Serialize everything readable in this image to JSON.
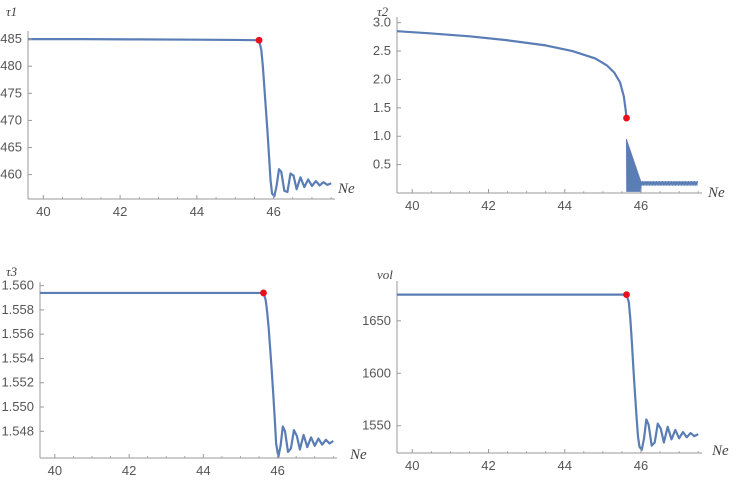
{
  "page": {
    "background": "#ffffff"
  },
  "style": {
    "line_color": "#5a7db5",
    "marker_color": "#e8101a",
    "axis_color": "#9a9a9a"
  },
  "chart_data": [
    {
      "type": "line",
      "ylabel": "τ1",
      "xlabel": "Ne",
      "xlim": [
        39.6,
        47.6
      ],
      "ylim": [
        455.5,
        486.5
      ],
      "x_origin": 39.6,
      "y_origin": 455.5,
      "x_ticks": [
        40,
        42,
        44,
        46
      ],
      "y_ticks": [
        460,
        465,
        470,
        475,
        480,
        485
      ],
      "y_tick_labels": [
        "460",
        "465",
        "470",
        "475",
        "480",
        "485"
      ],
      "x_tick_labels": [
        "40",
        "42",
        "44",
        "46"
      ],
      "series": [
        {
          "x": [
            39.6,
            41.0,
            42.5,
            44.0,
            45.0,
            45.5,
            45.62,
            45.68,
            45.72,
            45.76,
            45.8,
            45.84,
            45.88,
            45.92,
            45.96,
            46.02,
            46.08,
            46.14,
            46.2,
            46.28,
            46.36,
            46.44,
            46.52,
            46.6,
            46.7,
            46.8,
            46.9,
            47.0,
            47.1,
            47.2,
            47.3,
            47.4,
            47.5
          ],
          "y": [
            485.0,
            485.0,
            484.95,
            484.9,
            484.85,
            484.8,
            484.8,
            483.0,
            480.0,
            476.0,
            472.0,
            468.0,
            463.5,
            459.0,
            456.5,
            456.0,
            458.0,
            461.0,
            460.5,
            457.0,
            456.8,
            460.2,
            459.8,
            457.3,
            459.5,
            457.7,
            459.1,
            457.9,
            458.8,
            458.0,
            458.6,
            458.1,
            458.4
          ]
        }
      ],
      "markers": [
        {
          "x": 45.62,
          "y": 484.8
        }
      ]
    },
    {
      "type": "line",
      "ylabel": "τ2",
      "xlabel": "Ne",
      "xlim": [
        39.6,
        47.6
      ],
      "ylim": [
        0,
        3.1
      ],
      "x_origin": 39.6,
      "y_origin": 0,
      "x_ticks": [
        40,
        42,
        44,
        46
      ],
      "y_ticks": [
        0.5,
        1.0,
        1.5,
        2.0,
        2.5,
        3.0
      ],
      "y_tick_labels": [
        "0.5",
        "1.0",
        "1.5",
        "2.0",
        "2.5",
        "3.0"
      ],
      "x_tick_labels": [
        "40",
        "42",
        "44",
        "46"
      ],
      "series": [
        {
          "x": [
            39.6,
            40.5,
            41.5,
            42.5,
            43.5,
            44.2,
            44.8,
            45.1,
            45.3,
            45.45,
            45.55,
            45.6,
            45.62
          ],
          "y": [
            2.85,
            2.81,
            2.76,
            2.69,
            2.6,
            2.5,
            2.37,
            2.25,
            2.12,
            1.95,
            1.7,
            1.45,
            1.32
          ]
        }
      ],
      "noise_band": {
        "x_start": 45.62,
        "x_dense_end": 46.0,
        "x_end": 47.5,
        "y_low": 0.02,
        "y_high_start": 0.95,
        "y_tail": 0.17
      },
      "markers": [
        {
          "x": 45.62,
          "y": 1.32
        }
      ]
    },
    {
      "type": "line",
      "ylabel": "τ3",
      "xlabel": "Ne",
      "xlim": [
        39.6,
        47.6
      ],
      "ylim": [
        1.5458,
        1.5603
      ],
      "x_origin": 39.6,
      "y_origin": 1.5458,
      "x_ticks": [
        40,
        42,
        44,
        46
      ],
      "y_ticks": [
        1.548,
        1.55,
        1.552,
        1.554,
        1.556,
        1.558,
        1.56
      ],
      "y_tick_labels": [
        "1.548",
        "1.550",
        "1.552",
        "1.554",
        "1.556",
        "1.558",
        "1.560"
      ],
      "x_tick_labels": [
        "40",
        "42",
        "44",
        "46"
      ],
      "series": [
        {
          "x": [
            39.6,
            41.0,
            42.5,
            44.0,
            45.0,
            45.5,
            45.62,
            45.68,
            45.72,
            45.76,
            45.8,
            45.84,
            45.88,
            45.92,
            45.96,
            46.02,
            46.08,
            46.14,
            46.2,
            46.28,
            46.36,
            46.44,
            46.52,
            46.6,
            46.7,
            46.8,
            46.9,
            47.0,
            47.1,
            47.2,
            47.3,
            47.4,
            47.5
          ],
          "y": [
            1.5594,
            1.5594,
            1.5594,
            1.5594,
            1.5594,
            1.5594,
            1.5594,
            1.5588,
            1.5578,
            1.5565,
            1.5548,
            1.5531,
            1.5512,
            1.5492,
            1.547,
            1.5459,
            1.5468,
            1.5484,
            1.548,
            1.5463,
            1.5466,
            1.5481,
            1.5476,
            1.5465,
            1.5477,
            1.5467,
            1.5475,
            1.5468,
            1.5474,
            1.5469,
            1.5473,
            1.547,
            1.5472
          ]
        }
      ],
      "markers": [
        {
          "x": 45.62,
          "y": 1.5594
        }
      ]
    },
    {
      "type": "line",
      "ylabel": "vol",
      "xlabel": "Ne",
      "xlim": [
        39.6,
        47.6
      ],
      "ylim": [
        1524,
        1688
      ],
      "x_origin": 39.6,
      "y_origin": 1524,
      "x_ticks": [
        40,
        42,
        44,
        46
      ],
      "y_ticks": [
        1550,
        1600,
        1650
      ],
      "y_tick_labels": [
        "1550",
        "1600",
        "1650"
      ],
      "x_tick_labels": [
        "40",
        "42",
        "44",
        "46"
      ],
      "series": [
        {
          "x": [
            39.6,
            41.0,
            42.5,
            44.0,
            45.0,
            45.5,
            45.62,
            45.68,
            45.72,
            45.76,
            45.8,
            45.84,
            45.88,
            45.92,
            45.96,
            46.02,
            46.08,
            46.14,
            46.2,
            46.28,
            46.36,
            46.44,
            46.52,
            46.6,
            46.7,
            46.8,
            46.9,
            47.0,
            47.1,
            47.2,
            47.3,
            47.4,
            47.5
          ],
          "y": [
            1675,
            1675,
            1675,
            1675,
            1675,
            1675,
            1675,
            1668,
            1652,
            1630,
            1605,
            1582,
            1560,
            1540,
            1530,
            1527,
            1538,
            1556,
            1551,
            1531,
            1534,
            1552,
            1547,
            1534,
            1549,
            1537,
            1546,
            1538,
            1544,
            1539,
            1543,
            1540,
            1542
          ]
        }
      ],
      "markers": [
        {
          "x": 45.62,
          "y": 1675
        }
      ]
    }
  ]
}
